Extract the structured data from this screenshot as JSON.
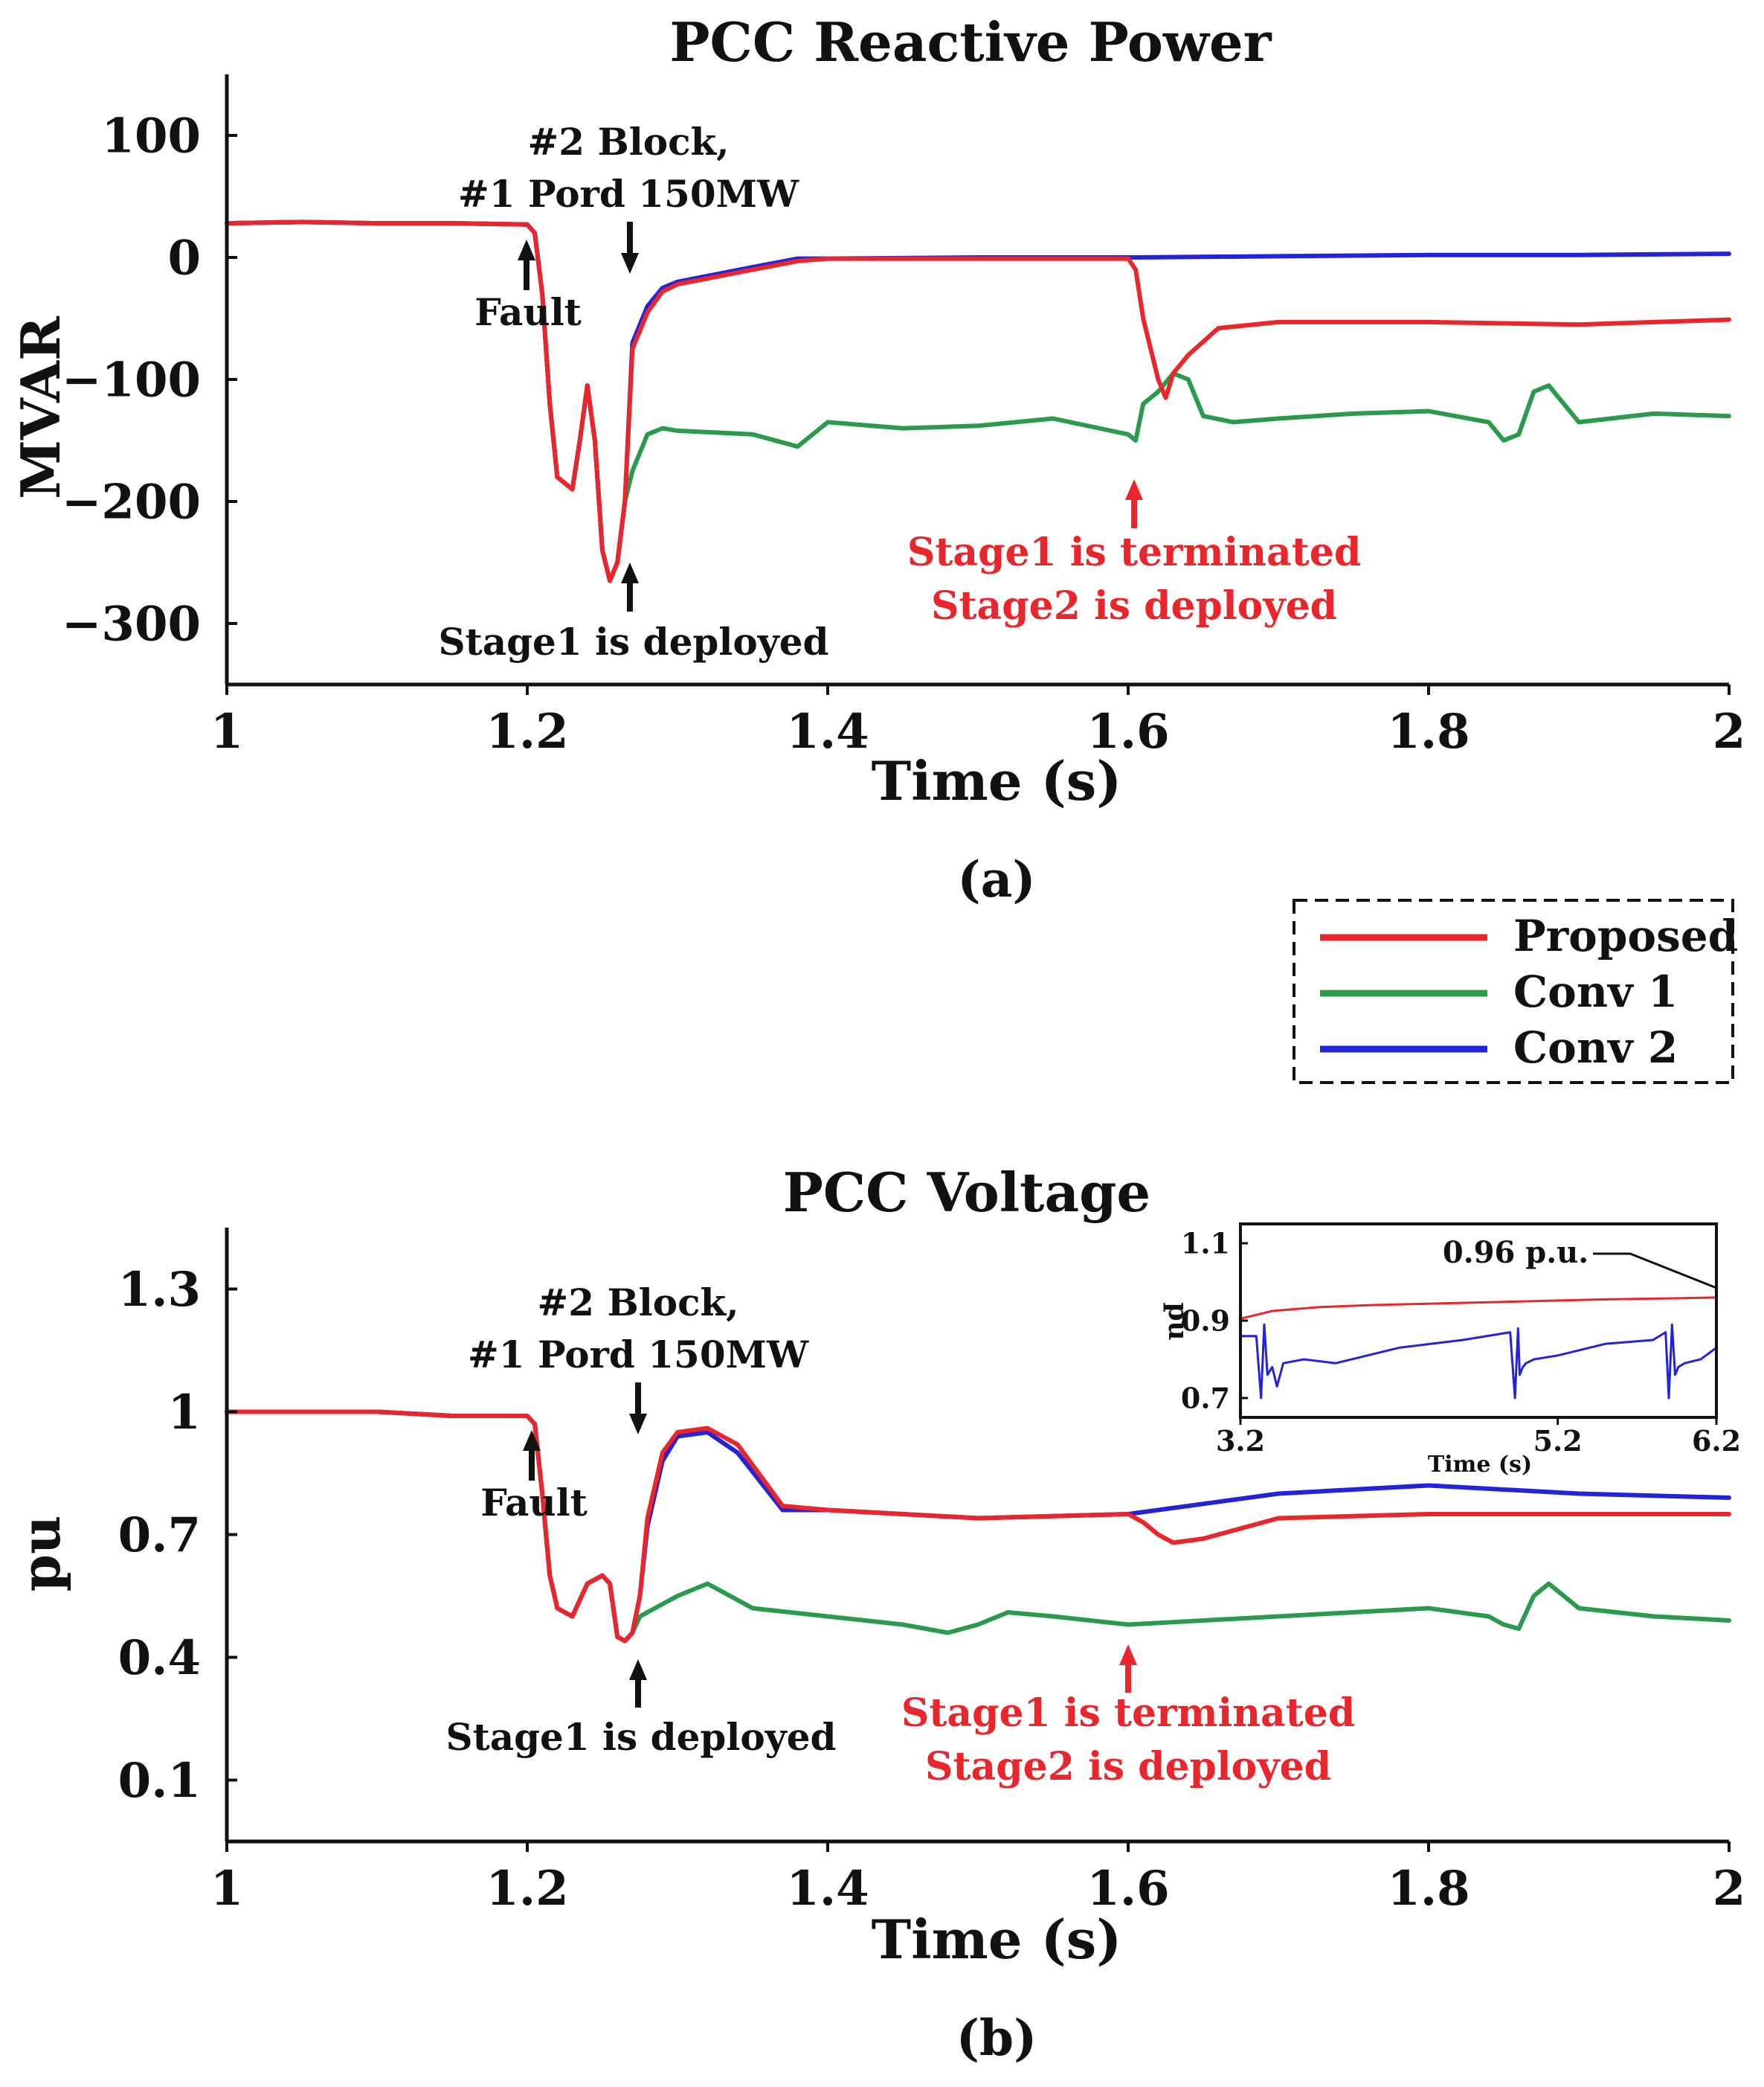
{
  "legend": {
    "entries": [
      {
        "name": "Proposed",
        "color": "#e8262b"
      },
      {
        "name": "Conv 1",
        "color": "#2a9a4c"
      },
      {
        "name": "Conv 2",
        "color": "#2323d8"
      }
    ]
  },
  "chart_data": [
    {
      "type": "line",
      "title": "PCC Reactive Power",
      "xlabel": "Time (s)",
      "ylabel": "MVAR",
      "caption": "(a)",
      "xlim": [
        1,
        2
      ],
      "ylim": [
        -350,
        150
      ],
      "xticks": [
        1,
        1.2,
        1.4,
        1.6,
        1.8,
        2
      ],
      "xtick_labels": [
        "1",
        "1.2",
        "1.4",
        "1.6",
        "1.8",
        "2"
      ],
      "yticks": [
        100,
        0,
        -100,
        -200,
        -300
      ],
      "ytick_labels": [
        "100",
        "0",
        "−100",
        "−200",
        "−300"
      ],
      "series": [
        {
          "name": "Conv 1",
          "color": "#2a9a4c",
          "x": [
            1.0,
            1.05,
            1.1,
            1.15,
            1.2,
            1.205,
            1.21,
            1.215,
            1.22,
            1.23,
            1.235,
            1.24,
            1.245,
            1.25,
            1.255,
            1.26,
            1.265,
            1.27,
            1.275,
            1.28,
            1.29,
            1.3,
            1.35,
            1.38,
            1.4,
            1.45,
            1.5,
            1.55,
            1.6,
            1.605,
            1.61,
            1.62,
            1.63,
            1.64,
            1.65,
            1.67,
            1.7,
            1.75,
            1.8,
            1.84,
            1.85,
            1.86,
            1.87,
            1.88,
            1.9,
            1.95,
            2.0
          ],
          "y": [
            28,
            29,
            28,
            28,
            27,
            20,
            -30,
            -120,
            -180,
            -190,
            -150,
            -105,
            -150,
            -240,
            -265,
            -250,
            -200,
            -175,
            -160,
            -145,
            -140,
            -142,
            -145,
            -155,
            -135,
            -140,
            -138,
            -132,
            -145,
            -150,
            -120,
            -110,
            -95,
            -100,
            -130,
            -135,
            -132,
            -128,
            -126,
            -135,
            -150,
            -145,
            -110,
            -105,
            -135,
            -128,
            -130
          ]
        },
        {
          "name": "Conv 2",
          "color": "#2323d8",
          "x": [
            1.0,
            1.05,
            1.1,
            1.15,
            1.2,
            1.205,
            1.21,
            1.215,
            1.22,
            1.23,
            1.235,
            1.24,
            1.245,
            1.25,
            1.255,
            1.26,
            1.265,
            1.27,
            1.28,
            1.29,
            1.3,
            1.35,
            1.38,
            1.4,
            1.5,
            1.6,
            1.7,
            1.8,
            1.9,
            2.0
          ],
          "y": [
            28,
            29,
            28,
            28,
            27,
            20,
            -30,
            -120,
            -180,
            -190,
            -150,
            -105,
            -150,
            -240,
            -265,
            -250,
            -200,
            -70,
            -40,
            -25,
            -20,
            -8,
            -1,
            -1,
            0,
            0,
            1,
            2,
            2,
            3
          ]
        },
        {
          "name": "Proposed",
          "color": "#e8262b",
          "x": [
            1.0,
            1.05,
            1.1,
            1.15,
            1.2,
            1.205,
            1.21,
            1.215,
            1.22,
            1.23,
            1.235,
            1.24,
            1.245,
            1.25,
            1.255,
            1.26,
            1.265,
            1.27,
            1.28,
            1.29,
            1.3,
            1.35,
            1.38,
            1.4,
            1.5,
            1.6,
            1.605,
            1.61,
            1.62,
            1.625,
            1.63,
            1.64,
            1.66,
            1.7,
            1.8,
            1.9,
            2.0
          ],
          "y": [
            28,
            29,
            28,
            28,
            27,
            20,
            -30,
            -120,
            -180,
            -190,
            -150,
            -105,
            -150,
            -240,
            -265,
            -250,
            -200,
            -75,
            -45,
            -28,
            -22,
            -10,
            -3,
            -1,
            -1,
            -1,
            -10,
            -50,
            -100,
            -115,
            -95,
            -80,
            -58,
            -53,
            -53,
            -55,
            -51
          ]
        }
      ],
      "annotations": [
        {
          "lines": [
            "#2 Block,",
            "#1 Pord 150MW"
          ],
          "color": "#111111"
        },
        {
          "lines": [
            "Fault"
          ],
          "color": "#111111"
        },
        {
          "lines": [
            "Stage1 is deployed"
          ],
          "color": "#111111"
        },
        {
          "lines": [
            "Stage1 is terminated",
            "Stage2 is deployed"
          ],
          "color": "#e8262b"
        }
      ]
    },
    {
      "type": "line",
      "title": "PCC Voltage",
      "xlabel": "Time (s)",
      "ylabel": "pu",
      "caption": "(b)",
      "xlim": [
        1,
        2
      ],
      "ylim": [
        -0.05,
        1.45
      ],
      "xticks": [
        1,
        1.2,
        1.4,
        1.6,
        1.8,
        2
      ],
      "xtick_labels": [
        "1",
        "1.2",
        "1.4",
        "1.6",
        "1.8",
        "2"
      ],
      "yticks": [
        1.3,
        1,
        0.7,
        0.4,
        0.1
      ],
      "ytick_labels": [
        "1.3",
        "1",
        "0.7",
        "0.4",
        "0.1"
      ],
      "series": [
        {
          "name": "Conv 1",
          "color": "#2a9a4c",
          "x": [
            1.0,
            1.05,
            1.1,
            1.15,
            1.2,
            1.205,
            1.21,
            1.215,
            1.22,
            1.23,
            1.24,
            1.25,
            1.255,
            1.26,
            1.265,
            1.27,
            1.275,
            1.28,
            1.29,
            1.3,
            1.32,
            1.35,
            1.4,
            1.45,
            1.48,
            1.5,
            1.52,
            1.55,
            1.6,
            1.7,
            1.8,
            1.84,
            1.85,
            1.86,
            1.87,
            1.88,
            1.9,
            1.95,
            2.0
          ],
          "y": [
            1.0,
            1.0,
            1.0,
            0.99,
            0.99,
            0.97,
            0.8,
            0.6,
            0.52,
            0.5,
            0.58,
            0.6,
            0.58,
            0.45,
            0.44,
            0.46,
            0.5,
            0.51,
            0.53,
            0.55,
            0.58,
            0.52,
            0.5,
            0.48,
            0.46,
            0.48,
            0.51,
            0.5,
            0.48,
            0.5,
            0.52,
            0.5,
            0.48,
            0.47,
            0.55,
            0.58,
            0.52,
            0.5,
            0.49
          ]
        },
        {
          "name": "Conv 2",
          "color": "#2323d8",
          "x": [
            1.0,
            1.05,
            1.1,
            1.15,
            1.2,
            1.205,
            1.21,
            1.215,
            1.22,
            1.23,
            1.24,
            1.25,
            1.255,
            1.26,
            1.265,
            1.27,
            1.275,
            1.28,
            1.29,
            1.3,
            1.32,
            1.34,
            1.37,
            1.4,
            1.5,
            1.6,
            1.7,
            1.8,
            1.9,
            2.0
          ],
          "y": [
            1.0,
            1.0,
            1.0,
            0.99,
            0.99,
            0.97,
            0.8,
            0.6,
            0.52,
            0.5,
            0.58,
            0.6,
            0.58,
            0.45,
            0.44,
            0.46,
            0.55,
            0.72,
            0.88,
            0.94,
            0.95,
            0.9,
            0.76,
            0.76,
            0.74,
            0.75,
            0.8,
            0.82,
            0.8,
            0.79
          ]
        },
        {
          "name": "Proposed",
          "color": "#e8262b",
          "x": [
            1.0,
            1.05,
            1.1,
            1.15,
            1.2,
            1.205,
            1.21,
            1.215,
            1.22,
            1.23,
            1.24,
            1.25,
            1.255,
            1.26,
            1.265,
            1.27,
            1.275,
            1.28,
            1.29,
            1.3,
            1.32,
            1.34,
            1.37,
            1.4,
            1.5,
            1.6,
            1.61,
            1.62,
            1.63,
            1.65,
            1.7,
            1.8,
            1.9,
            2.0
          ],
          "y": [
            1.0,
            1.0,
            1.0,
            0.99,
            0.99,
            0.97,
            0.8,
            0.6,
            0.52,
            0.5,
            0.58,
            0.6,
            0.58,
            0.45,
            0.44,
            0.46,
            0.55,
            0.74,
            0.9,
            0.95,
            0.96,
            0.92,
            0.77,
            0.76,
            0.74,
            0.75,
            0.73,
            0.7,
            0.68,
            0.69,
            0.74,
            0.75,
            0.75,
            0.75
          ]
        }
      ],
      "annotations": [
        {
          "lines": [
            "#2 Block,",
            "#1 Pord 150MW"
          ],
          "color": "#111111"
        },
        {
          "lines": [
            "Fault"
          ],
          "color": "#111111"
        },
        {
          "lines": [
            "Stage1 is deployed"
          ],
          "color": "#111111"
        },
        {
          "lines": [
            "Stage1 is terminated",
            "Stage2 is deployed"
          ],
          "color": "#e8262b"
        }
      ],
      "inset": {
        "xlabel": "Time (s)",
        "ylabel": "pu",
        "xlim": [
          3.2,
          6.2
        ],
        "ylim": [
          0.65,
          1.15
        ],
        "xticks": [
          3.2,
          5.2,
          6.2
        ],
        "xtick_labels": [
          "3.2",
          "5.2",
          "6.2"
        ],
        "yticks": [
          1.1,
          0.9,
          0.7
        ],
        "ytick_labels": [
          "1.1",
          "0.9",
          "0.7"
        ],
        "annotation": "0.96 p.u.",
        "series": [
          {
            "name": "Proposed",
            "color": "#e8262b",
            "x": [
              3.2,
              3.4,
              3.7,
              4.0,
              4.5,
              5.0,
              5.5,
              6.0,
              6.2
            ],
            "y": [
              0.905,
              0.925,
              0.935,
              0.94,
              0.945,
              0.95,
              0.955,
              0.958,
              0.96
            ]
          },
          {
            "name": "Conv 2",
            "color": "#2323d8",
            "x": [
              3.2,
              3.3,
              3.33,
              3.35,
              3.37,
              3.4,
              3.43,
              3.47,
              3.6,
              3.8,
              4.2,
              4.6,
              4.9,
              4.93,
              4.95,
              4.96,
              4.98,
              5.0,
              5.05,
              5.2,
              5.5,
              5.8,
              5.88,
              5.9,
              5.92,
              5.94,
              5.96,
              6.0,
              6.1,
              6.2
            ],
            "y": [
              0.86,
              0.86,
              0.7,
              0.89,
              0.76,
              0.78,
              0.73,
              0.79,
              0.8,
              0.79,
              0.83,
              0.85,
              0.87,
              0.7,
              0.88,
              0.76,
              0.78,
              0.79,
              0.8,
              0.81,
              0.84,
              0.85,
              0.87,
              0.7,
              0.89,
              0.76,
              0.78,
              0.79,
              0.8,
              0.83
            ]
          }
        ]
      }
    }
  ]
}
